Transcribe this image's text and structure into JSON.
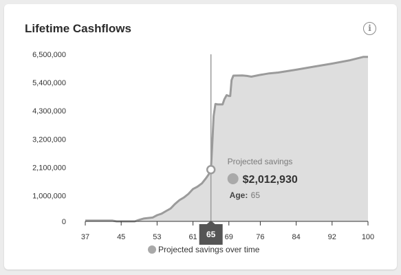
{
  "header": {
    "title": "Lifetime Cashflows",
    "info_icon": "info-icon",
    "info_glyph": "i"
  },
  "tooltip": {
    "label": "Projected savings",
    "value": "$2,012,930",
    "age_key": "Age:",
    "age_value": "65"
  },
  "marker": {
    "label": "65"
  },
  "legend": {
    "label": "Projected savings over time"
  },
  "colors": {
    "line": "#9b9b9b",
    "fill": "#dedede",
    "marker": "#555555",
    "axis": "#333333"
  },
  "chart_data": {
    "type": "area",
    "title": "Lifetime Cashflows",
    "xlabel": "",
    "ylabel": "",
    "xlim": [
      37,
      100
    ],
    "ylim": [
      0,
      6500000
    ],
    "x_ticks": [
      37,
      45,
      53,
      61,
      69,
      76,
      84,
      92,
      100
    ],
    "y_ticks": [
      0,
      1000000,
      2100000,
      3200000,
      4300000,
      5400000,
      6500000
    ],
    "y_tick_labels": [
      "0",
      "1,000,000",
      "2,100,000",
      "3,200,000",
      "4,300,000",
      "5,400,000",
      "6,500,000"
    ],
    "highlight_x": 65,
    "series": [
      {
        "name": "Projected savings over time",
        "x": [
          37,
          40,
          43,
          44,
          45,
          46,
          47,
          48,
          49,
          50,
          51,
          52,
          53,
          54,
          55,
          56,
          57,
          58,
          59,
          60,
          61,
          62,
          63,
          64,
          64.5,
          65,
          65.3,
          65.6,
          66,
          66.5,
          67,
          67.3,
          67.6,
          68,
          68.5,
          69,
          69.3,
          69.6,
          70,
          72,
          73,
          74,
          76,
          78,
          80,
          84,
          88,
          92,
          96,
          99,
          100
        ],
        "y": [
          30000,
          30000,
          30000,
          0,
          0,
          0,
          0,
          0,
          60000,
          110000,
          130000,
          150000,
          240000,
          300000,
          400000,
          500000,
          680000,
          830000,
          930000,
          1070000,
          1260000,
          1350000,
          1480000,
          1700000,
          1830000,
          2012930,
          3000000,
          4100000,
          4570000,
          4550000,
          4550000,
          4550000,
          4550000,
          4750000,
          4910000,
          4880000,
          4880000,
          5500000,
          5670000,
          5680000,
          5660000,
          5630000,
          5700000,
          5760000,
          5790000,
          5900000,
          6020000,
          6140000,
          6270000,
          6400000,
          6400000
        ]
      }
    ]
  }
}
